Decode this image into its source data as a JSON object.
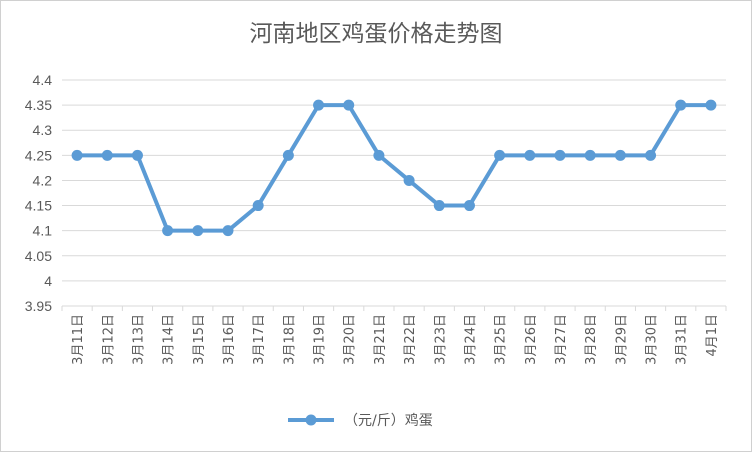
{
  "chart_data": {
    "type": "line",
    "title": "河南地区鸡蛋价格走势图",
    "categories": [
      "3月11日",
      "3月12日",
      "3月13日",
      "3月14日",
      "3月15日",
      "3月16日",
      "3月17日",
      "3月18日",
      "3月19日",
      "3月20日",
      "3月21日",
      "3月22日",
      "3月23日",
      "3月24日",
      "3月25日",
      "3月26日",
      "3月27日",
      "3月28日",
      "3月29日",
      "3月30日",
      "3月31日",
      "4月1日"
    ],
    "series": [
      {
        "name": "（元/斤）鸡蛋",
        "values": [
          4.25,
          4.25,
          4.25,
          4.1,
          4.1,
          4.1,
          4.15,
          4.25,
          4.35,
          4.35,
          4.25,
          4.2,
          4.15,
          4.15,
          4.25,
          4.25,
          4.25,
          4.25,
          4.25,
          4.25,
          4.35,
          4.35
        ]
      }
    ],
    "yticks": [
      "3.95",
      "4",
      "4.05",
      "4.1",
      "4.15",
      "4.2",
      "4.25",
      "4.3",
      "4.35",
      "4.4"
    ],
    "ylim": [
      3.95,
      4.4
    ],
    "grid": true,
    "legend_position": "bottom",
    "line_color": "#5b9bd5",
    "grid_color": "#d9d9d9"
  }
}
